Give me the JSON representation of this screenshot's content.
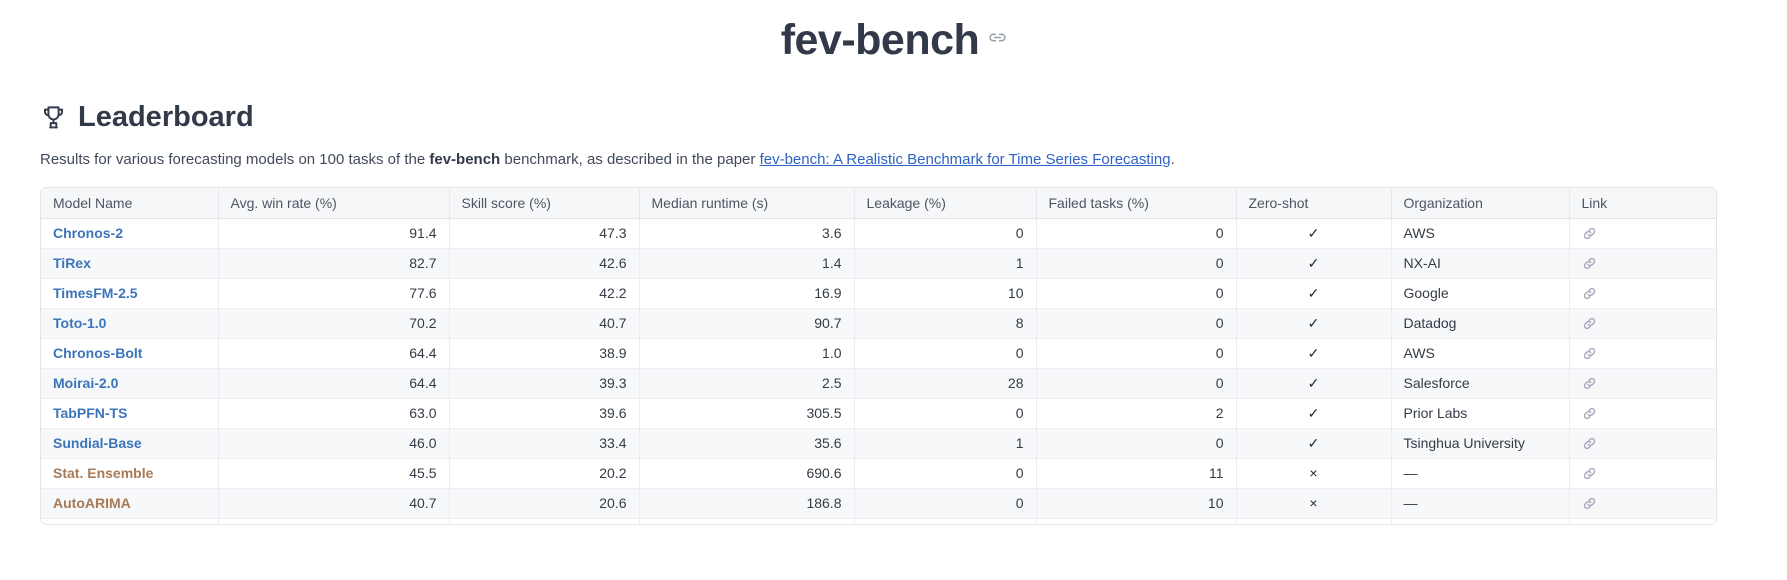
{
  "page": {
    "title": "fev-bench",
    "heading": "Leaderboard",
    "heading_icon": "trophy-icon",
    "description": {
      "prefix": "Results for various forecasting models on 100 tasks of the ",
      "bold": "fev-bench",
      "middle": " benchmark, as described in the paper ",
      "link_text": "fev-bench: A Realistic Benchmark for Time Series Forecasting",
      "suffix": "."
    }
  },
  "colors": {
    "heading_text": "#323949",
    "description_link": "#2d63c5",
    "model_link": "#3c74b9",
    "model_link_alt": "#a87a55",
    "link_icon": "#b1a7bf",
    "header_bg": "#f6f7f9",
    "alt_row_bg": "#f7f8fa"
  },
  "table": {
    "columns": [
      "Model Name",
      "Avg. win rate (%)",
      "Skill score (%)",
      "Median runtime (s)",
      "Leakage (%)",
      "Failed tasks (%)",
      "Zero-shot",
      "Organization",
      "Link"
    ],
    "column_keys": [
      "model",
      "avg_win_rate",
      "skill_score",
      "median_runtime",
      "leakage",
      "failed_tasks",
      "zero_shot",
      "organization",
      "link"
    ],
    "rows": [
      {
        "model": "Chronos-2",
        "avg_win_rate": "91.4",
        "skill_score": "47.3",
        "median_runtime": "3.6",
        "leakage": "0",
        "failed_tasks": "0",
        "zero_shot": "✓",
        "organization": "AWS",
        "alt": false
      },
      {
        "model": "TiRex",
        "avg_win_rate": "82.7",
        "skill_score": "42.6",
        "median_runtime": "1.4",
        "leakage": "1",
        "failed_tasks": "0",
        "zero_shot": "✓",
        "organization": "NX-AI",
        "alt": false
      },
      {
        "model": "TimesFM-2.5",
        "avg_win_rate": "77.6",
        "skill_score": "42.2",
        "median_runtime": "16.9",
        "leakage": "10",
        "failed_tasks": "0",
        "zero_shot": "✓",
        "organization": "Google",
        "alt": false
      },
      {
        "model": "Toto-1.0",
        "avg_win_rate": "70.2",
        "skill_score": "40.7",
        "median_runtime": "90.7",
        "leakage": "8",
        "failed_tasks": "0",
        "zero_shot": "✓",
        "organization": "Datadog",
        "alt": false
      },
      {
        "model": "Chronos-Bolt",
        "avg_win_rate": "64.4",
        "skill_score": "38.9",
        "median_runtime": "1.0",
        "leakage": "0",
        "failed_tasks": "0",
        "zero_shot": "✓",
        "organization": "AWS",
        "alt": false
      },
      {
        "model": "Moirai-2.0",
        "avg_win_rate": "64.4",
        "skill_score": "39.3",
        "median_runtime": "2.5",
        "leakage": "28",
        "failed_tasks": "0",
        "zero_shot": "✓",
        "organization": "Salesforce",
        "alt": false
      },
      {
        "model": "TabPFN-TS",
        "avg_win_rate": "63.0",
        "skill_score": "39.6",
        "median_runtime": "305.5",
        "leakage": "0",
        "failed_tasks": "2",
        "zero_shot": "✓",
        "organization": "Prior Labs",
        "alt": false
      },
      {
        "model": "Sundial-Base",
        "avg_win_rate": "46.0",
        "skill_score": "33.4",
        "median_runtime": "35.6",
        "leakage": "1",
        "failed_tasks": "0",
        "zero_shot": "✓",
        "organization": "Tsinghua University",
        "alt": false
      },
      {
        "model": "Stat. Ensemble",
        "avg_win_rate": "45.5",
        "skill_score": "20.2",
        "median_runtime": "690.6",
        "leakage": "0",
        "failed_tasks": "11",
        "zero_shot": "×",
        "organization": "—",
        "alt": true
      },
      {
        "model": "AutoARIMA",
        "avg_win_rate": "40.7",
        "skill_score": "20.6",
        "median_runtime": "186.8",
        "leakage": "0",
        "failed_tasks": "10",
        "zero_shot": "×",
        "organization": "—",
        "alt": true
      }
    ],
    "partial_row_visible": true
  }
}
